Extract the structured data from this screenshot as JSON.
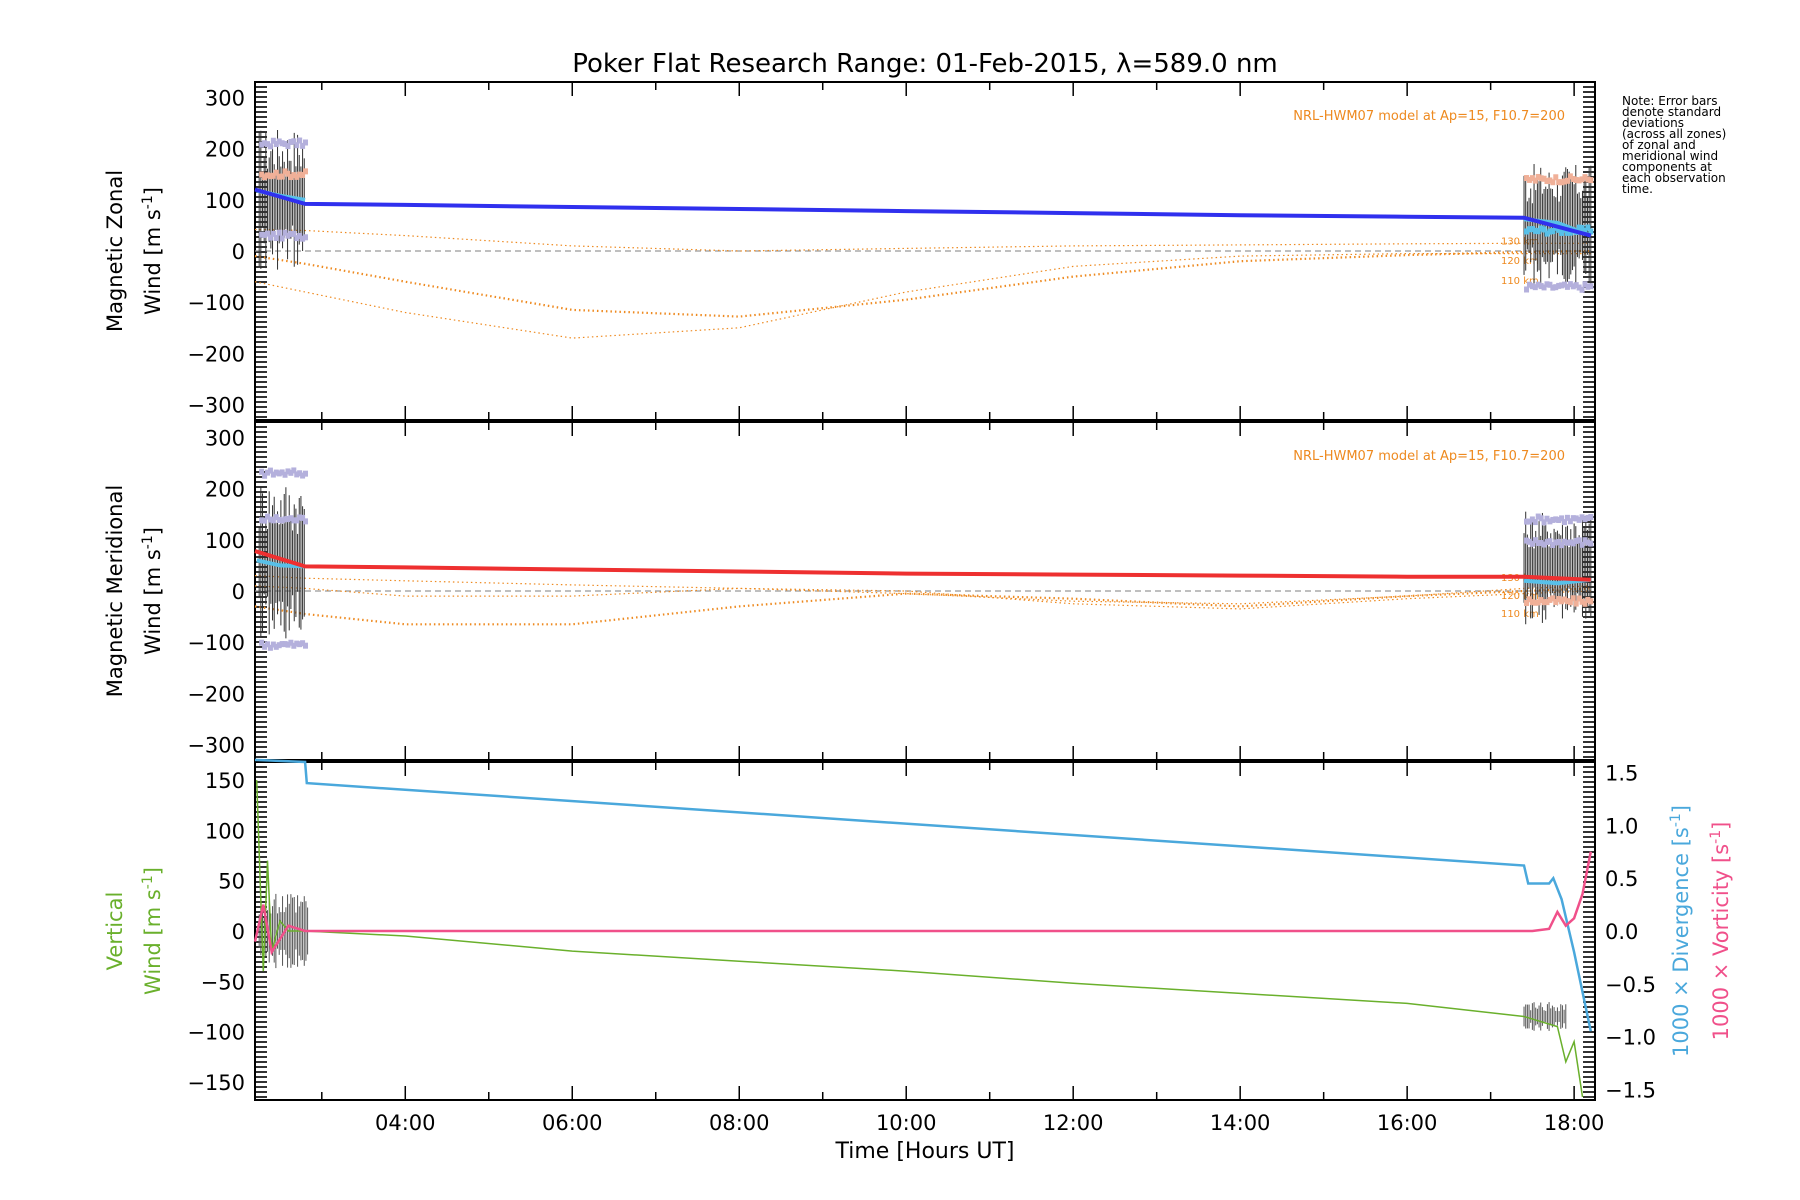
{
  "title": "Poker Flat Research Range: 01-Feb-2015, λ=589.0 nm",
  "xlabel": "Time [Hours UT]",
  "x_ticks": [
    "04:00",
    "06:00",
    "08:00",
    "10:00",
    "12:00",
    "14:00",
    "16:00",
    "18:00"
  ],
  "note_lines": [
    "Note: Error bars",
    "denote standard",
    "deviations",
    "(across all zones)",
    "of zonal and",
    "meridional wind",
    "components at",
    "each observation",
    "time."
  ],
  "colors": {
    "zonal": "#3030ee",
    "meridional": "#ee3030",
    "model": "#ee8a20",
    "vertical": "#6ab02c",
    "divergence": "#4aa8dc",
    "vorticity": "#f0508a",
    "lavender": "#b4b0dc",
    "peach": "#f0b098",
    "cyan": "#58c0e8",
    "errbar": "#303030"
  },
  "chart_data": [
    {
      "type": "line",
      "panel": "zonal",
      "ylabel_line1": "Magnetic Zonal",
      "ylabel_line2": "Wind [m s",
      "ylabel_sup": "-1",
      "ylabel_close": "]",
      "ylim": [
        -330,
        330
      ],
      "y_ticks": [
        "300",
        "200",
        "100",
        "0",
        "−100",
        "−200",
        "−300"
      ],
      "y_tick_values": [
        300,
        200,
        100,
        0,
        -100,
        -200,
        -300
      ],
      "model_label": "NRL-HWM07 model at Ap=15, F10.7=200",
      "model_alt_labels": [
        "130 km",
        "120 km",
        "110 km"
      ],
      "x_hours": [
        2.2,
        2.8,
        4,
        6,
        8,
        10,
        12,
        14,
        16,
        17.4,
        18.2
      ],
      "series": [
        {
          "name": "wind",
          "values": [
            120,
            92,
            90,
            86,
            82,
            78,
            74,
            70,
            67,
            65,
            30
          ]
        },
        {
          "name": "model-130km",
          "values": [
            42,
            40,
            30,
            10,
            0,
            5,
            10,
            12,
            14,
            15,
            15
          ]
        },
        {
          "name": "model-120km",
          "values": [
            -10,
            -25,
            -60,
            -115,
            -128,
            -95,
            -50,
            -20,
            -8,
            -2,
            0
          ]
        },
        {
          "name": "model-110km",
          "values": [
            -60,
            -80,
            -120,
            -170,
            -150,
            -80,
            -30,
            -10,
            -5,
            -5,
            -5
          ]
        }
      ]
    },
    {
      "type": "line",
      "panel": "meridional",
      "ylabel_line1": "Magnetic Meridional",
      "ylabel_line2": "Wind [m s",
      "ylabel_sup": "-1",
      "ylabel_close": "]",
      "ylim": [
        -330,
        330
      ],
      "y_ticks": [
        "300",
        "200",
        "100",
        "0",
        "−100",
        "−200",
        "−300"
      ],
      "y_tick_values": [
        300,
        200,
        100,
        0,
        -100,
        -200,
        -300
      ],
      "model_label": "NRL-HWM07 model at Ap=15, F10.7=200",
      "model_alt_labels": [
        "130 km",
        "120 km",
        "110 km"
      ],
      "x_hours": [
        2.2,
        2.8,
        4,
        6,
        8,
        10,
        12,
        14,
        16,
        17.4,
        18.2
      ],
      "series": [
        {
          "name": "wind",
          "values": [
            78,
            48,
            46,
            42,
            38,
            34,
            32,
            30,
            28,
            28,
            22
          ]
        },
        {
          "name": "model-130km",
          "values": [
            30,
            25,
            20,
            12,
            5,
            -5,
            -20,
            -25,
            -10,
            5,
            10
          ]
        },
        {
          "name": "model-120km",
          "values": [
            -30,
            -45,
            -65,
            -65,
            -30,
            -5,
            -15,
            -30,
            -10,
            0,
            5
          ]
        },
        {
          "name": "model-110km",
          "values": [
            10,
            5,
            -10,
            -10,
            5,
            0,
            -25,
            -35,
            -15,
            -5,
            0
          ]
        }
      ]
    },
    {
      "type": "line",
      "panel": "vertical",
      "ylabel_line1": "Vertical",
      "ylabel_line2": "Wind [m s",
      "ylabel_sup": "-1",
      "ylabel_close": "]",
      "ylim": [
        -168,
        168
      ],
      "y_ticks": [
        "150",
        "100",
        "50",
        "0",
        "−50",
        "−100",
        "−150"
      ],
      "y_tick_values": [
        150,
        100,
        50,
        0,
        -50,
        -100,
        -150
      ],
      "y2lim": [
        -1.6,
        1.6
      ],
      "y2_ticks": [
        "1.5",
        "1.0",
        "0.5",
        "0.0",
        "−0.5",
        "−1.0",
        "−1.5"
      ],
      "y2_tick_values": [
        1.5,
        1.0,
        0.5,
        0.0,
        -0.5,
        -1.0,
        -1.5
      ],
      "y2label_div": "1000 × Divergence [s",
      "y2label_vor": "1000 × Vorticity [s",
      "y2label_sup": "-1",
      "y2label_close": "]",
      "x_hours": [
        2.8,
        4,
        6,
        8,
        10,
        12,
        14,
        16,
        17.4
      ],
      "vertical_wind": [
        0,
        -5,
        -20,
        -30,
        -40,
        -52,
        -62,
        -72,
        -85
      ],
      "divergence_x": [
        2.2,
        2.8,
        2.82,
        17.4,
        17.45,
        17.7,
        17.75,
        17.85,
        18.0,
        18.2
      ],
      "divergence": [
        1.62,
        1.6,
        1.4,
        0.62,
        0.45,
        0.45,
        0.5,
        0.3,
        -0.2,
        -0.95
      ],
      "vorticity_x": [
        2.2,
        2.3,
        2.4,
        2.6,
        2.8,
        17.5,
        17.7,
        17.8,
        17.9,
        18.0,
        18.1,
        18.2
      ],
      "vorticity": [
        -0.1,
        0.25,
        -0.2,
        0.05,
        0.0,
        0.0,
        0.02,
        0.18,
        0.05,
        0.12,
        0.35,
        0.75
      ]
    }
  ]
}
